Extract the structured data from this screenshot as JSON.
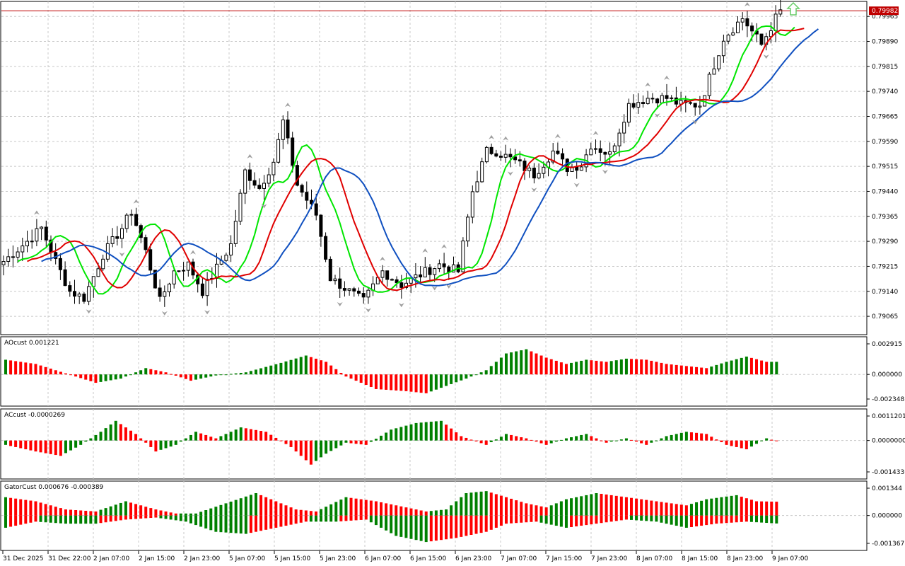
{
  "chart_data": [
    {
      "type": "candlestick",
      "pane": "main",
      "current_price": "0.79982",
      "current_price_value": 0.79982,
      "ylim": [
        0.7901,
        0.8001
      ],
      "y_ticks": [
        "0.79965",
        "0.79890",
        "0.79815",
        "0.79740",
        "0.79665",
        "0.79590",
        "0.79515",
        "0.79440",
        "0.79365",
        "0.79290",
        "0.79215",
        "0.79140",
        "0.79065"
      ],
      "y_tick_values": [
        0.79965,
        0.7989,
        0.79815,
        0.7974,
        0.79665,
        0.7959,
        0.79515,
        0.7944,
        0.79365,
        0.7929,
        0.79215,
        0.7914,
        0.79065
      ],
      "candle_count": 165,
      "close_anchors": [
        [
          0,
          0.7923
        ],
        [
          5,
          0.7929
        ],
        [
          8,
          0.7933
        ],
        [
          11,
          0.7923
        ],
        [
          14,
          0.7914
        ],
        [
          17,
          0.7912
        ],
        [
          21,
          0.7925
        ],
        [
          25,
          0.7933
        ],
        [
          27,
          0.7938
        ],
        [
          30,
          0.7926
        ],
        [
          33,
          0.7911
        ],
        [
          36,
          0.792
        ],
        [
          39,
          0.7922
        ],
        [
          42,
          0.7914
        ],
        [
          48,
          0.7928
        ],
        [
          51,
          0.795
        ],
        [
          54,
          0.7945
        ],
        [
          57,
          0.7953
        ],
        [
          59,
          0.7965
        ],
        [
          62,
          0.7946
        ],
        [
          66,
          0.7937
        ],
        [
          69,
          0.7918
        ],
        [
          72,
          0.7915
        ],
        [
          76,
          0.7911
        ],
        [
          80,
          0.792
        ],
        [
          84,
          0.7916
        ],
        [
          88,
          0.7919
        ],
        [
          92,
          0.7922
        ],
        [
          96,
          0.792
        ],
        [
          99,
          0.7944
        ],
        [
          102,
          0.7956
        ],
        [
          104,
          0.7956
        ],
        [
          108,
          0.7953
        ],
        [
          112,
          0.7949
        ],
        [
          116,
          0.7956
        ],
        [
          119,
          0.7951
        ],
        [
          122,
          0.7952
        ],
        [
          124,
          0.7958
        ],
        [
          128,
          0.7955
        ],
        [
          132,
          0.797
        ],
        [
          136,
          0.7972
        ],
        [
          140,
          0.7972
        ],
        [
          143,
          0.797
        ],
        [
          147,
          0.797
        ],
        [
          152,
          0.799
        ],
        [
          156,
          0.7996
        ],
        [
          160,
          0.7988
        ],
        [
          163,
          0.7996
        ],
        [
          164,
          0.7998
        ]
      ],
      "indicators": [
        "green line",
        "red line",
        "blue line"
      ]
    },
    {
      "type": "bar",
      "pane": "AOcust",
      "label": "AOcust 0.001221",
      "y_ticks": [
        "0.002915",
        "0.000000",
        "-0.002348"
      ],
      "ylim": [
        -0.002348,
        0.002915
      ],
      "bar_count": 155,
      "value_anchors": [
        [
          0,
          0.0014
        ],
        [
          6,
          0.001
        ],
        [
          12,
          0.0001
        ],
        [
          18,
          -0.0008
        ],
        [
          23,
          -0.0004
        ],
        [
          28,
          0.0006
        ],
        [
          32,
          0.0002
        ],
        [
          37,
          -0.0006
        ],
        [
          42,
          -0.0001
        ],
        [
          48,
          0.0002
        ],
        [
          55,
          0.0011
        ],
        [
          60,
          0.0018
        ],
        [
          64,
          0.0012
        ],
        [
          68,
          -0.0002
        ],
        [
          74,
          -0.0014
        ],
        [
          80,
          -0.0016
        ],
        [
          84,
          -0.0018
        ],
        [
          88,
          -0.0011
        ],
        [
          92,
          -0.0004
        ],
        [
          96,
          0.0004
        ],
        [
          100,
          0.002
        ],
        [
          104,
          0.0024
        ],
        [
          108,
          0.0016
        ],
        [
          112,
          0.001
        ],
        [
          116,
          0.0014
        ],
        [
          120,
          0.0012
        ],
        [
          124,
          0.0015
        ],
        [
          128,
          0.0014
        ],
        [
          132,
          0.001
        ],
        [
          136,
          0.0008
        ],
        [
          140,
          0.0006
        ],
        [
          144,
          0.0012
        ],
        [
          148,
          0.0017
        ],
        [
          152,
          0.0012
        ],
        [
          154,
          0.0012
        ]
      ]
    },
    {
      "type": "bar",
      "pane": "ACcust",
      "label": "ACcust -0.0000269",
      "y_ticks": [
        "0.0011201",
        "0.0000000",
        "-0.0014336"
      ],
      "ylim": [
        -0.0014336,
        0.0011201
      ],
      "bar_count": 155,
      "value_anchors": [
        [
          0,
          -0.0002
        ],
        [
          6,
          -0.0005
        ],
        [
          11,
          -0.0007
        ],
        [
          15,
          -0.0002
        ],
        [
          19,
          0.0004
        ],
        [
          22,
          0.0009
        ],
        [
          26,
          0.0003
        ],
        [
          30,
          -0.0005
        ],
        [
          34,
          -0.0002
        ],
        [
          38,
          0.0004
        ],
        [
          42,
          0.0001
        ],
        [
          47,
          0.0006
        ],
        [
          52,
          0.0004
        ],
        [
          57,
          -0.0003
        ],
        [
          61,
          -0.0011
        ],
        [
          64,
          -0.0006
        ],
        [
          68,
          -0.0001
        ],
        [
          72,
          -0.0002
        ],
        [
          77,
          0.0005
        ],
        [
          82,
          0.0008
        ],
        [
          87,
          0.0009
        ],
        [
          91,
          0.0002
        ],
        [
          96,
          -0.0002
        ],
        [
          100,
          0.0003
        ],
        [
          104,
          0.0001
        ],
        [
          108,
          -0.0002
        ],
        [
          112,
          0.0001
        ],
        [
          116,
          0.0003
        ],
        [
          120,
          -0.0001
        ],
        [
          124,
          0.0001
        ],
        [
          128,
          -0.0002
        ],
        [
          132,
          0.0002
        ],
        [
          136,
          0.0004
        ],
        [
          140,
          0.0003
        ],
        [
          144,
          -0.0002
        ],
        [
          148,
          -0.0004
        ],
        [
          152,
          0.0001
        ],
        [
          154,
          -3e-05
        ]
      ]
    },
    {
      "type": "bar",
      "pane": "GatorCust",
      "label": "GatorCust 0.000676 -0.000389",
      "y_ticks": [
        "0.001344",
        "0.000000",
        "-0.001367"
      ],
      "ylim": [
        -0.001367,
        0.001344
      ],
      "bar_count": 155,
      "upper_anchors": [
        [
          0,
          0.0009
        ],
        [
          6,
          0.0007
        ],
        [
          12,
          0.0003
        ],
        [
          18,
          0.0002
        ],
        [
          24,
          0.0007
        ],
        [
          30,
          0.0003
        ],
        [
          34,
          0.0001
        ],
        [
          38,
          0.0001
        ],
        [
          44,
          0.0006
        ],
        [
          50,
          0.0011
        ],
        [
          54,
          0.0007
        ],
        [
          58,
          0.0003
        ],
        [
          62,
          0.0002
        ],
        [
          68,
          0.0009
        ],
        [
          74,
          0.0007
        ],
        [
          80,
          0.0004
        ],
        [
          84,
          0.0002
        ],
        [
          88,
          0.0003
        ],
        [
          92,
          0.0011
        ],
        [
          96,
          0.0012
        ],
        [
          100,
          0.0009
        ],
        [
          104,
          0.0006
        ],
        [
          108,
          0.0004
        ],
        [
          112,
          0.0008
        ],
        [
          118,
          0.0011
        ],
        [
          124,
          0.0009
        ],
        [
          130,
          0.0007
        ],
        [
          136,
          0.0005
        ],
        [
          140,
          0.0008
        ],
        [
          146,
          0.001
        ],
        [
          150,
          0.0007
        ],
        [
          154,
          0.00068
        ]
      ],
      "lower_anchors": [
        [
          0,
          -0.0006
        ],
        [
          6,
          -0.0003
        ],
        [
          12,
          -0.0004
        ],
        [
          18,
          -0.0004
        ],
        [
          24,
          -0.0002
        ],
        [
          30,
          -0.0001
        ],
        [
          36,
          -0.0003
        ],
        [
          42,
          -0.0008
        ],
        [
          48,
          -0.0009
        ],
        [
          54,
          -0.0006
        ],
        [
          60,
          -0.0003
        ],
        [
          66,
          -0.0003
        ],
        [
          72,
          -0.0002
        ],
        [
          78,
          -0.001
        ],
        [
          84,
          -0.0013
        ],
        [
          90,
          -0.0011
        ],
        [
          96,
          -0.0008
        ],
        [
          100,
          -0.0004
        ],
        [
          106,
          -0.0003
        ],
        [
          112,
          -0.0006
        ],
        [
          118,
          -0.0004
        ],
        [
          124,
          -0.0002
        ],
        [
          130,
          -0.0003
        ],
        [
          136,
          -0.0006
        ],
        [
          142,
          -0.0004
        ],
        [
          148,
          -0.0003
        ],
        [
          154,
          -0.00039
        ]
      ]
    }
  ],
  "x_axis": {
    "ticks": [
      "31 Dec 2025",
      "31 Dec 22:00",
      "2 Jan 07:00",
      "2 Jan 15:00",
      "2 Jan 23:00",
      "5 Jan 07:00",
      "5 Jan 15:00",
      "5 Jan 23:00",
      "6 Jan 07:00",
      "6 Jan 15:00",
      "6 Jan 23:00",
      "7 Jan 07:00",
      "7 Jan 15:00",
      "7 Jan 23:00",
      "8 Jan 07:00",
      "8 Jan 15:00",
      "8 Jan 23:00",
      "9 Jan 07:00"
    ]
  },
  "colors": {
    "up_bar": "#008000",
    "down_bar": "#ff0000",
    "line_green": "#00e600",
    "line_red": "#e00000",
    "line_blue": "#1050c0",
    "price_line": "#c00000",
    "grid": "#c8c8c8",
    "fractal": "#a0a0a0",
    "signal_arrow": "#66cc66"
  }
}
